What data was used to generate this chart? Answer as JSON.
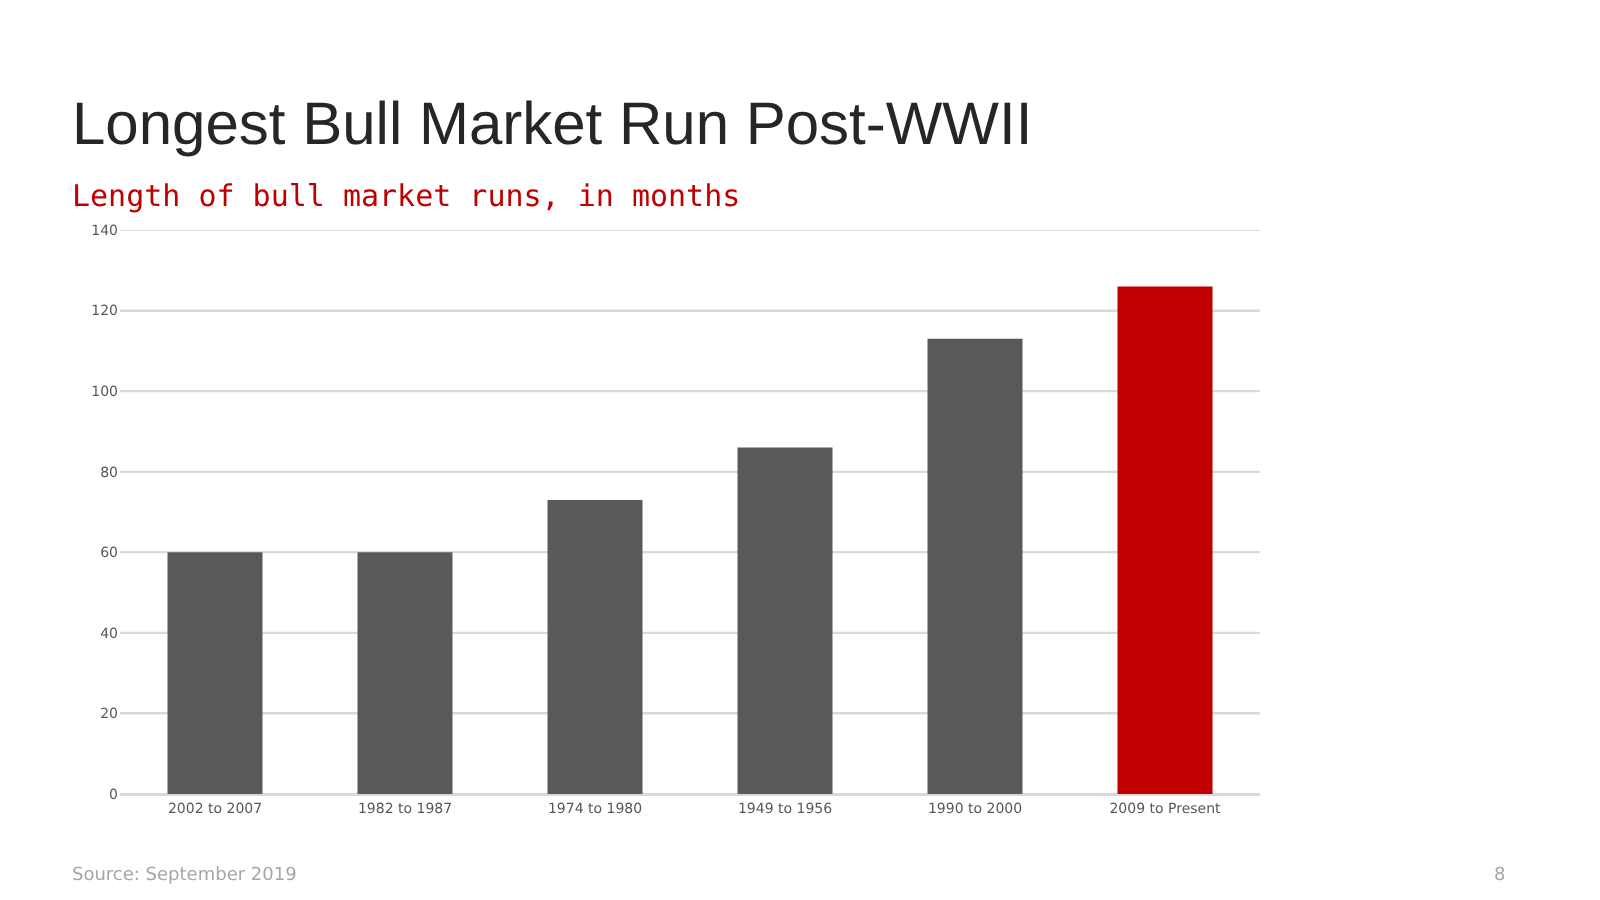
{
  "chart_data": {
    "type": "bar",
    "title": "Longest Bull Market Run Post-WWII",
    "subtitle": "Length of bull market runs, in months",
    "categories": [
      "2002 to 2007",
      "1982 to 1987",
      "1974 to 1980",
      "1949 to 1956",
      "1990 to 2000",
      "2009 to Present"
    ],
    "values": [
      60,
      60,
      73,
      86,
      113,
      126
    ],
    "colors": [
      "#595959",
      "#595959",
      "#595959",
      "#595959",
      "#595959",
      "#c00000"
    ],
    "ylim": [
      0,
      140
    ],
    "yticks": [
      0,
      20,
      40,
      60,
      80,
      100,
      120,
      140
    ],
    "grid": "y",
    "annotations": [
      "Source: September 2019",
      "8"
    ]
  }
}
